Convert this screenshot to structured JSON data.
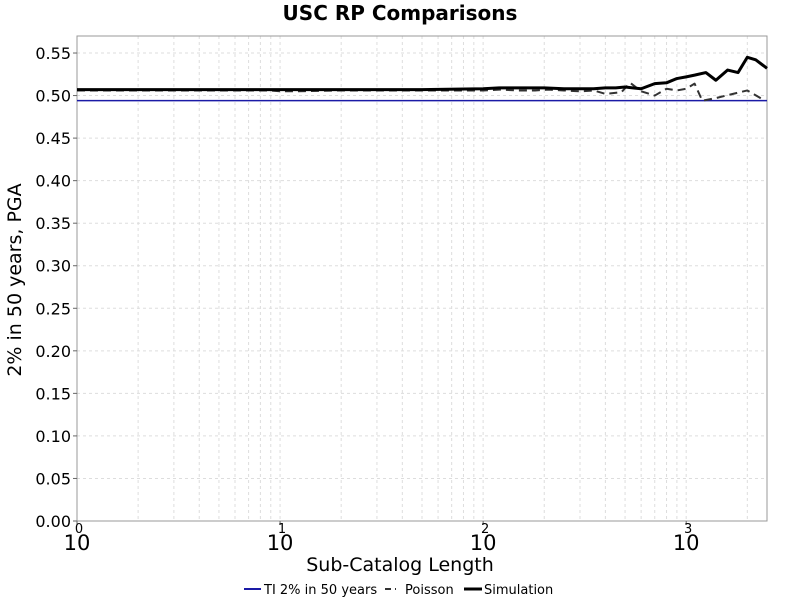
{
  "chart_data": {
    "type": "line",
    "title": "USC RP Comparisons",
    "xlabel": "Sub-Catalog Length",
    "ylabel": "2% in 50 years, PGA",
    "x_scale": "log",
    "xlim": [
      1,
      2500
    ],
    "ylim": [
      0,
      0.57
    ],
    "grid": true,
    "legend_position": "bottom",
    "x_ticks": [
      {
        "base": "10",
        "exp": "0",
        "value": 1
      },
      {
        "base": "10",
        "exp": "1",
        "value": 10
      },
      {
        "base": "10",
        "exp": "2",
        "value": 100
      },
      {
        "base": "10",
        "exp": "3",
        "value": 1000
      }
    ],
    "y_ticks": [
      "0.00",
      "0.05",
      "0.10",
      "0.15",
      "0.20",
      "0.25",
      "0.30",
      "0.35",
      "0.40",
      "0.45",
      "0.50",
      "0.55"
    ],
    "series": [
      {
        "name": "TI 2% in 50 years",
        "color": "#1a1aa6",
        "style": "solid",
        "x": [
          1,
          2500
        ],
        "y": [
          0.494,
          0.494
        ]
      },
      {
        "name": "Poisson",
        "color": "#333333",
        "style": "dashed",
        "x": [
          1,
          2,
          5,
          9,
          10,
          12,
          20,
          50,
          100,
          120,
          150,
          180,
          210,
          250,
          300,
          350,
          400,
          480,
          530,
          600,
          700,
          800,
          900,
          1000,
          1100,
          1200,
          1400,
          1700,
          2000,
          2400
        ],
        "y": [
          0.506,
          0.506,
          0.506,
          0.506,
          0.505,
          0.505,
          0.506,
          0.506,
          0.506,
          0.507,
          0.506,
          0.506,
          0.507,
          0.506,
          0.505,
          0.506,
          0.502,
          0.504,
          0.515,
          0.505,
          0.5,
          0.508,
          0.506,
          0.508,
          0.514,
          0.494,
          0.497,
          0.502,
          0.506,
          0.495
        ]
      },
      {
        "name": "Simulation",
        "color": "#000000",
        "style": "solid",
        "x": [
          1,
          2,
          5,
          10,
          20,
          50,
          100,
          120,
          150,
          180,
          200,
          250,
          300,
          350,
          400,
          450,
          500,
          600,
          700,
          800,
          900,
          1000,
          1100,
          1250,
          1400,
          1600,
          1800,
          2000,
          2200,
          2500
        ],
        "y": [
          0.507,
          0.507,
          0.507,
          0.507,
          0.507,
          0.507,
          0.508,
          0.509,
          0.509,
          0.509,
          0.509,
          0.508,
          0.508,
          0.508,
          0.509,
          0.509,
          0.51,
          0.508,
          0.514,
          0.515,
          0.52,
          0.522,
          0.524,
          0.527,
          0.518,
          0.53,
          0.527,
          0.545,
          0.542,
          0.532
        ]
      }
    ]
  }
}
